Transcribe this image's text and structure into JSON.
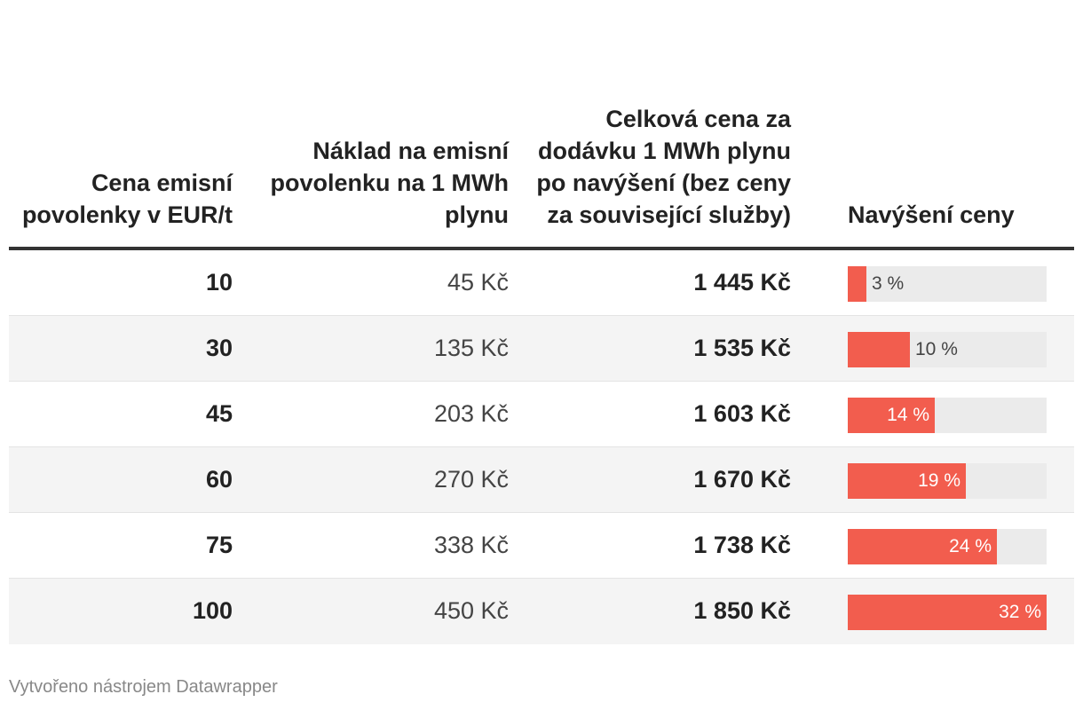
{
  "table": {
    "columns": [
      "Cena emisní povolenky v EUR/t",
      "Náklad na emisní povolenku na 1 MWh plynu",
      "Celková cena za dodávku 1 MWh plynu po navýšení (bez ceny za související služby)",
      "Navýšení ceny"
    ]
  },
  "chart_data": {
    "type": "table",
    "title": "",
    "bar_max_percent": 32,
    "colors": {
      "bar": "#f25d4e",
      "bar_track": "#ebebeb",
      "row_alt": "#f4f4f4"
    },
    "rows": [
      {
        "price": "10",
        "cost": "45 Kč",
        "total": "1 445 Kč",
        "increase": 3,
        "increase_label": "3 %"
      },
      {
        "price": "30",
        "cost": "135 Kč",
        "total": "1 535 Kč",
        "increase": 10,
        "increase_label": "10 %"
      },
      {
        "price": "45",
        "cost": "203 Kč",
        "total": "1 603 Kč",
        "increase": 14,
        "increase_label": "14 %"
      },
      {
        "price": "60",
        "cost": "270 Kč",
        "total": "1 670 Kč",
        "increase": 19,
        "increase_label": "19 %"
      },
      {
        "price": "75",
        "cost": "338 Kč",
        "total": "1 738 Kč",
        "increase": 24,
        "increase_label": "24 %"
      },
      {
        "price": "100",
        "cost": "450 Kč",
        "total": "1 850 Kč",
        "increase": 32,
        "increase_label": "32 %"
      }
    ]
  },
  "footer": {
    "credit": "Vytvořeno nástrojem Datawrapper"
  }
}
